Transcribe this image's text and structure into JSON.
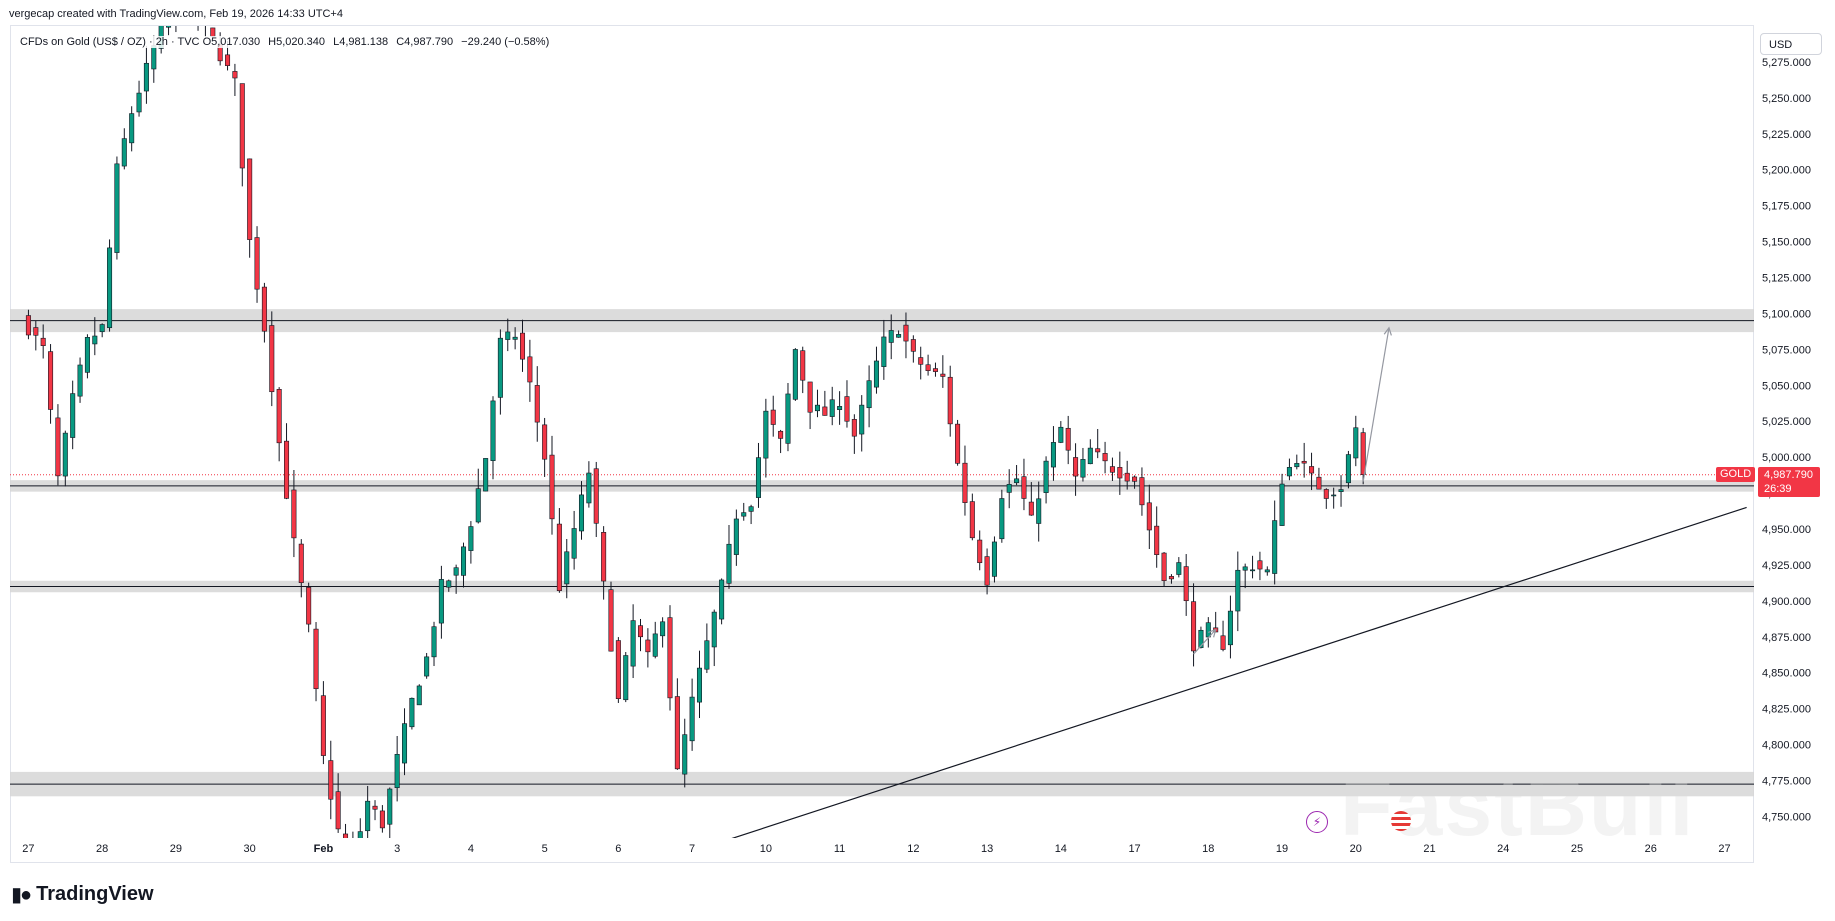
{
  "header": {
    "created_by": "vergecap created with TradingView.com, Feb 19, 2026 14:33 UTC+4"
  },
  "symbol": {
    "title": "CFDs on Gold (US$ / OZ) · 2h · TVC",
    "open": "O5,017.030",
    "high": "H5,020.340",
    "low": "L4,981.138",
    "close": "C4,987.790",
    "change": "−29.240 (−0.58%)",
    "ticker": "GOLD",
    "last_price": "4,987.790",
    "countdown": "26:39"
  },
  "currency_button": "USD",
  "logo": {
    "text": "TradingView",
    "icon": "tradingview-logo-icon"
  },
  "watermark": "FastBull",
  "icons": {
    "lightning": "lightning-icon",
    "flag": "us-flag-icon"
  },
  "colors": {
    "up": "#089981",
    "down": "#f23645",
    "wick": "#131722",
    "zone": "#d6d6d6",
    "last_price_line": "#f23645",
    "trendline": "#131722",
    "projection": "#9598a1"
  },
  "chart_data": {
    "type": "candlestick",
    "interval": "2h",
    "y_range": [
      4735,
      5300
    ],
    "y_ticks": [
      4750,
      4775,
      4800,
      4825,
      4850,
      4875,
      4900,
      4925,
      4950,
      4975,
      5000,
      5025,
      5050,
      5075,
      5100,
      5125,
      5150,
      5175,
      5200,
      5225,
      5250,
      5275
    ],
    "y_tick_labels": [
      "4,750.000",
      "4,775.000",
      "4,800.000",
      "4,825.000",
      "4,850.000",
      "4,875.000",
      "4,900.000",
      "4,925.000",
      "4,950.000",
      "4,975.000",
      "5,000.000",
      "5,025.000",
      "5,050.000",
      "5,075.000",
      "5,100.000",
      "5,125.000",
      "5,150.000",
      "5,175.000",
      "5,200.000",
      "5,225.000",
      "5,250.000",
      "5,275.000"
    ],
    "x_labels": [
      "27",
      "28",
      "29",
      "30",
      "Feb",
      "3",
      "4",
      "5",
      "6",
      "7",
      "10",
      "11",
      "12",
      "13",
      "14",
      "17",
      "18",
      "19",
      "20",
      "21",
      "24",
      "25",
      "26",
      "27"
    ],
    "x_label_index": [
      0,
      10,
      20,
      30,
      40,
      50,
      60,
      70,
      80,
      90,
      100,
      110,
      120,
      130,
      140,
      150,
      160,
      170,
      180,
      190,
      200,
      210,
      220,
      230
    ],
    "index_range": [
      -2.5,
      234
    ],
    "anchor_values": [
      [
        0,
        5090
      ],
      [
        2,
        5075
      ],
      [
        4,
        4985
      ],
      [
        6,
        5040
      ],
      [
        8,
        5080
      ],
      [
        10,
        5090
      ],
      [
        12,
        5200
      ],
      [
        14,
        5240
      ],
      [
        16,
        5270
      ],
      [
        18,
        5300
      ],
      [
        20,
        5310
      ],
      [
        22,
        5320
      ],
      [
        24,
        5300
      ],
      [
        26,
        5280
      ],
      [
        28,
        5260
      ],
      [
        30,
        5150
      ],
      [
        32,
        5090
      ],
      [
        34,
        5010
      ],
      [
        36,
        4940
      ],
      [
        38,
        4880
      ],
      [
        40,
        4790
      ],
      [
        42,
        4740
      ],
      [
        44,
        4720
      ],
      [
        46,
        4760
      ],
      [
        48,
        4745
      ],
      [
        50,
        4790
      ],
      [
        52,
        4830
      ],
      [
        54,
        4860
      ],
      [
        56,
        4910
      ],
      [
        58,
        4920
      ],
      [
        60,
        4955
      ],
      [
        62,
        5000
      ],
      [
        64,
        5080
      ],
      [
        66,
        5085
      ],
      [
        68,
        5050
      ],
      [
        70,
        5000
      ],
      [
        72,
        4910
      ],
      [
        74,
        4950
      ],
      [
        76,
        4990
      ],
      [
        78,
        4910
      ],
      [
        80,
        4830
      ],
      [
        82,
        4885
      ],
      [
        84,
        4860
      ],
      [
        86,
        4890
      ],
      [
        88,
        4780
      ],
      [
        90,
        4830
      ],
      [
        92,
        4870
      ],
      [
        94,
        4910
      ],
      [
        96,
        4960
      ],
      [
        98,
        4970
      ],
      [
        100,
        5030
      ],
      [
        102,
        5010
      ],
      [
        104,
        5075
      ],
      [
        106,
        5035
      ],
      [
        108,
        5030
      ],
      [
        110,
        5040
      ],
      [
        112,
        5015
      ],
      [
        114,
        5050
      ],
      [
        116,
        5080
      ],
      [
        118,
        5090
      ],
      [
        120,
        5070
      ],
      [
        122,
        5060
      ],
      [
        124,
        5055
      ],
      [
        126,
        4995
      ],
      [
        128,
        4945
      ],
      [
        130,
        4915
      ],
      [
        132,
        4975
      ],
      [
        134,
        4985
      ],
      [
        136,
        4955
      ],
      [
        138,
        4995
      ],
      [
        140,
        5020
      ],
      [
        142,
        4985
      ],
      [
        144,
        5005
      ],
      [
        146,
        4995
      ],
      [
        148,
        4990
      ],
      [
        150,
        4985
      ],
      [
        152,
        4950
      ],
      [
        154,
        4915
      ],
      [
        156,
        4925
      ],
      [
        158,
        4870
      ],
      [
        160,
        4880
      ],
      [
        162,
        4870
      ],
      [
        164,
        4920
      ],
      [
        166,
        4925
      ],
      [
        168,
        4920
      ],
      [
        170,
        4985
      ],
      [
        172,
        5000
      ],
      [
        174,
        4985
      ],
      [
        176,
        4975
      ],
      [
        178,
        4980
      ],
      [
        180,
        5020
      ],
      [
        181,
        4988
      ]
    ],
    "last_candle": {
      "open": 5017.03,
      "high": 5020.34,
      "low": 4981.138,
      "close": 4987.79
    },
    "zones": [
      {
        "low": 5087,
        "high": 5103
      },
      {
        "low": 4976,
        "high": 4984
      },
      {
        "low": 4906,
        "high": 4914
      },
      {
        "low": 4764,
        "high": 4781
      }
    ],
    "trendline": {
      "from": [
        95,
        4734
      ],
      "to": [
        233,
        4965
      ]
    },
    "projection_arrow": [
      [
        181,
        4983
      ],
      [
        184.5,
        5090
      ]
    ],
    "small_arrow": [
      [
        158,
        4863
      ],
      [
        161,
        4880
      ]
    ],
    "last_price": 4987.79
  }
}
